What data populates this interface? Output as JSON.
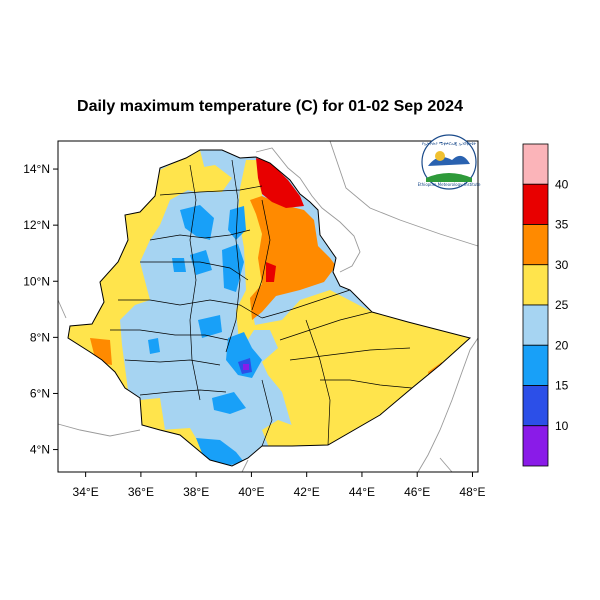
{
  "title": "Daily maximum temperature (C) for 01-02 Sep 2024",
  "x_ticks": [
    "34°E",
    "36°E",
    "38°E",
    "40°E",
    "42°E",
    "44°E",
    "46°E",
    "48°E"
  ],
  "y_ticks": [
    "14°N",
    "12°N",
    "10°N",
    "8°N",
    "6°N",
    "4°N"
  ],
  "colorbar": {
    "labels": [
      "40",
      "35",
      "30",
      "25",
      "20",
      "15",
      "10"
    ],
    "colors": [
      "#fbb4b9",
      "#e80000",
      "#ff8a00",
      "#ffe44c",
      "#a6d4f2",
      "#18a0f8",
      "#2c4fe8",
      "#8a1be8"
    ]
  },
  "logo": {
    "top_text": "የኢትዮጵያ ሚቲዎሮሎጂ ኢንስቲትዩት",
    "bottom_text": "Ethiopian Meteorology Institute"
  },
  "chart_data": {
    "type": "heatmap",
    "title": "Daily maximum temperature (C) for 01-02 Sep 2024",
    "xlim": [
      33,
      48.2
    ],
    "ylim": [
      3.2,
      15
    ],
    "x_tick_values": [
      34,
      36,
      38,
      40,
      42,
      44,
      46,
      48
    ],
    "y_tick_values": [
      14,
      12,
      10,
      8,
      6,
      4
    ],
    "levels": [
      10,
      15,
      20,
      25,
      30,
      35,
      40
    ],
    "units": "C"
  }
}
